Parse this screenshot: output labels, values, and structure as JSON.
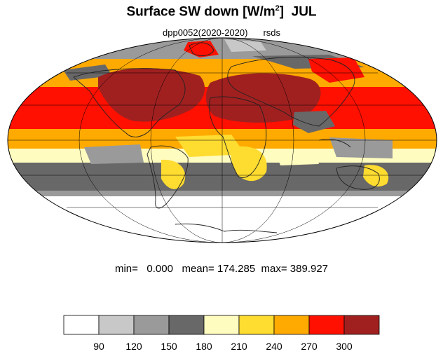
{
  "title": {
    "text": "Surface SW down [W/m",
    "sup": "2",
    "close": "]",
    "period": "JUL"
  },
  "subtitle": {
    "run": "dpp0052(2020-2020)",
    "variable": "rsds"
  },
  "stats": {
    "min_label": "min=",
    "min": "0.000",
    "mean_label": "mean=",
    "mean": "174.285",
    "max_label": "max=",
    "max": "389.927"
  },
  "projection": "mollweide",
  "colorbar": {
    "boundaries": [
      "90",
      "120",
      "150",
      "180",
      "210",
      "240",
      "270",
      "300"
    ],
    "colors": [
      "#ffffff",
      "#c8c8c8",
      "#9a9a9a",
      "#686868",
      "#fffcc0",
      "#ffdc30",
      "#ffaa00",
      "#ff1000",
      "#a02020"
    ]
  }
}
